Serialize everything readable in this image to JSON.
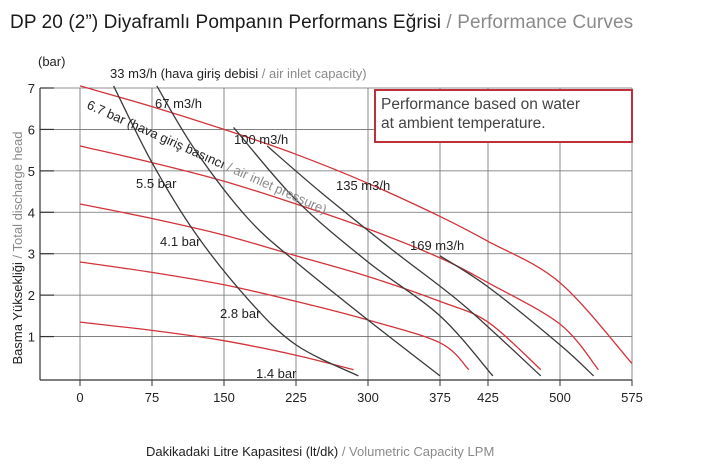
{
  "title": {
    "tr": "DP 20 (2”) Diyaframlı Pompanın Performans Eğrisi",
    "sep": " / ",
    "en": "Performance Curves"
  },
  "note": {
    "line1": "Performance based on water",
    "line2": "at ambient temperature."
  },
  "colors": {
    "pressure_curves": "#d2333a",
    "air_flow_curves": "#3a3a3a",
    "note_border": "#c0303a",
    "grid": "#6e6e6e",
    "english_text": "#8a8a8a"
  },
  "chart_data": {
    "type": "line",
    "y_unit_label": "(bar)",
    "xlabel": {
      "tr": "Dakikadaki Litre Kapasitesi (lt/dk)",
      "sep": " / ",
      "en": "Volumetric Capacity LPM"
    },
    "ylabel": {
      "tr": "Basma Yüksekliği",
      "sep": " / ",
      "en": "Total discharge head"
    },
    "xlim": [
      0,
      575
    ],
    "ylim": [
      0,
      7
    ],
    "x_ticks": [
      0,
      75,
      150,
      225,
      300,
      375,
      425,
      500,
      575
    ],
    "y_ticks": [
      1,
      2,
      3,
      4,
      5,
      6,
      7
    ],
    "grid": true,
    "pressure_group_label": {
      "tr": "(hava giriş basıncı",
      "sep": " / ",
      "en": "air inlet pressure)"
    },
    "air_flow_group_label": {
      "tr": "(hava giriş debisi",
      "sep": " / ",
      "en": "air inlet capacity)"
    },
    "series": [
      {
        "name": "6.7 bar",
        "kind": "air inlet pressure",
        "points": [
          [
            0,
            7.05
          ],
          [
            75,
            6.55
          ],
          [
            150,
            6.0
          ],
          [
            225,
            5.4
          ],
          [
            300,
            4.7
          ],
          [
            375,
            3.9
          ],
          [
            425,
            3.3
          ],
          [
            500,
            2.3
          ],
          [
            575,
            0.35
          ]
        ]
      },
      {
        "name": "5.5 bar",
        "kind": "air inlet pressure",
        "points": [
          [
            0,
            5.6
          ],
          [
            75,
            5.2
          ],
          [
            150,
            4.75
          ],
          [
            225,
            4.2
          ],
          [
            300,
            3.6
          ],
          [
            375,
            2.9
          ],
          [
            425,
            2.3
          ],
          [
            500,
            1.3
          ],
          [
            540,
            0.2
          ]
        ]
      },
      {
        "name": "4.1 bar",
        "kind": "air inlet pressure",
        "points": [
          [
            0,
            4.2
          ],
          [
            75,
            3.85
          ],
          [
            150,
            3.45
          ],
          [
            225,
            2.95
          ],
          [
            300,
            2.45
          ],
          [
            375,
            1.85
          ],
          [
            425,
            1.35
          ],
          [
            480,
            0.2
          ]
        ]
      },
      {
        "name": "2.8 bar",
        "kind": "air inlet pressure",
        "points": [
          [
            0,
            2.8
          ],
          [
            75,
            2.55
          ],
          [
            150,
            2.25
          ],
          [
            225,
            1.85
          ],
          [
            300,
            1.4
          ],
          [
            375,
            0.85
          ],
          [
            405,
            0.2
          ]
        ]
      },
      {
        "name": "1.4 bar",
        "kind": "air inlet pressure",
        "points": [
          [
            0,
            1.35
          ],
          [
            75,
            1.15
          ],
          [
            150,
            0.9
          ],
          [
            225,
            0.55
          ],
          [
            285,
            0.2
          ]
        ]
      },
      {
        "name": "33 m3/h",
        "kind": "air inlet capacity",
        "points": [
          [
            35,
            7.05
          ],
          [
            75,
            5.2
          ],
          [
            120,
            3.5
          ],
          [
            175,
            1.9
          ],
          [
            225,
            0.8
          ],
          [
            290,
            0.05
          ]
        ]
      },
      {
        "name": "67 m3/h",
        "kind": "air inlet capacity",
        "points": [
          [
            80,
            7.05
          ],
          [
            120,
            5.5
          ],
          [
            175,
            3.85
          ],
          [
            225,
            2.8
          ],
          [
            300,
            1.4
          ],
          [
            375,
            0.05
          ]
        ]
      },
      {
        "name": "100 m3/h",
        "kind": "air inlet capacity",
        "points": [
          [
            160,
            6.05
          ],
          [
            225,
            4.3
          ],
          [
            300,
            2.8
          ],
          [
            375,
            1.5
          ],
          [
            430,
            0.05
          ]
        ]
      },
      {
        "name": "135 m3/h",
        "kind": "air inlet capacity",
        "points": [
          [
            195,
            5.6
          ],
          [
            250,
            4.5
          ],
          [
            325,
            3.1
          ],
          [
            400,
            1.75
          ],
          [
            480,
            0.05
          ]
        ]
      },
      {
        "name": "169 m3/h",
        "kind": "air inlet capacity",
        "points": [
          [
            375,
            2.95
          ],
          [
            425,
            2.2
          ],
          [
            500,
            0.8
          ],
          [
            535,
            0.05
          ]
        ]
      }
    ]
  }
}
